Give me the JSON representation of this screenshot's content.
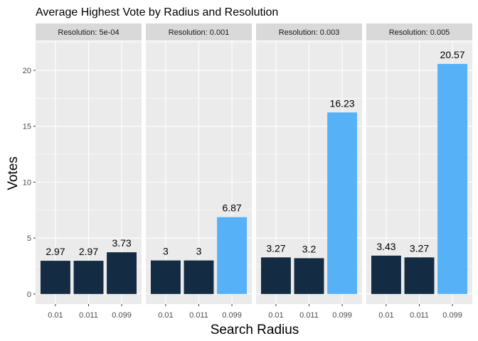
{
  "chart_data": {
    "type": "bar",
    "title": "Average Highest Vote by Radius and Resolution",
    "xlabel": "Search Radius",
    "ylabel": "Votes",
    "ylim": [
      -0.9,
      22.6
    ],
    "yticks": [
      0,
      5,
      10,
      15,
      20
    ],
    "grid": true,
    "categories": [
      "0.01",
      "0.011",
      "0.099"
    ],
    "colors": {
      "low": "#132b43",
      "high": "#56b1f7",
      "panel_bg": "#ebebeb",
      "strip_bg": "#d9d9d9",
      "grid": "#ffffff"
    },
    "facets": [
      {
        "label": "Resolution: 5e-04",
        "values": [
          2.97,
          2.97,
          3.73
        ],
        "labels": [
          "2.97",
          "2.97",
          "3.73"
        ]
      },
      {
        "label": "Resolution: 0.001",
        "values": [
          3,
          3,
          6.87
        ],
        "labels": [
          "3",
          "3",
          "6.87"
        ]
      },
      {
        "label": "Resolution: 0.003",
        "values": [
          3.27,
          3.2,
          16.23
        ],
        "labels": [
          "3.27",
          "3.2",
          "16.23"
        ]
      },
      {
        "label": "Resolution: 0.005",
        "values": [
          3.43,
          3.27,
          20.57
        ],
        "labels": [
          "3.43",
          "3.27",
          "20.57"
        ]
      }
    ]
  }
}
